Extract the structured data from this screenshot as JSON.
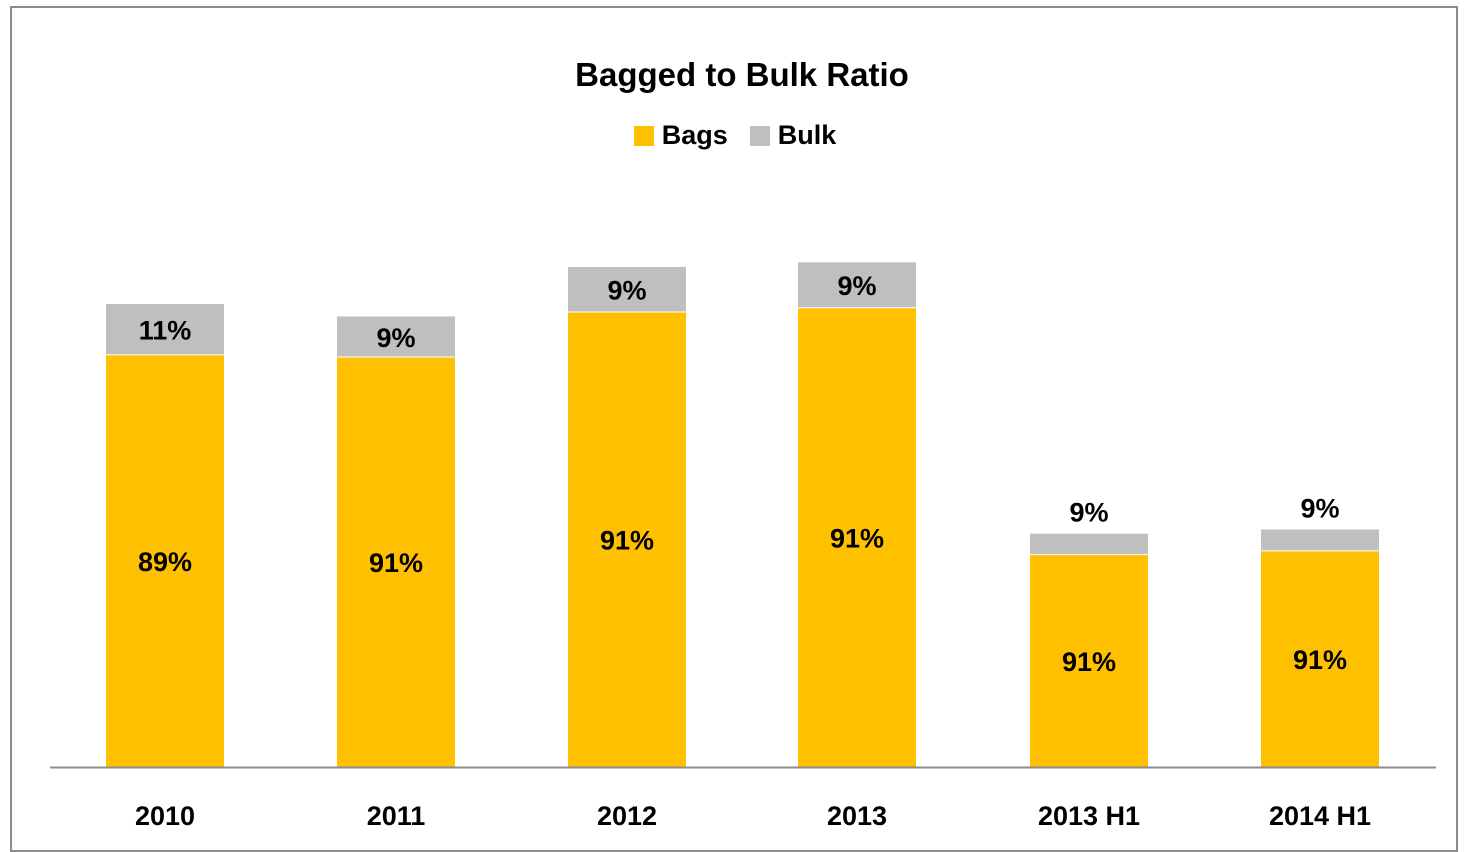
{
  "chart_data": {
    "type": "bar",
    "stacked": true,
    "title": "Bagged to Bulk Ratio",
    "xlabel": "",
    "ylabel": "",
    "categories": [
      "2010",
      "2011",
      "2012",
      "2013",
      "2013 H1",
      "2014 H1"
    ],
    "relative_height": [
      100,
      97.3,
      108,
      109,
      50.4,
      51.3
    ],
    "series": [
      {
        "name": "Bags",
        "color": "#FFC000",
        "values": [
          89,
          91,
          91,
          91,
          91,
          91
        ],
        "labels": [
          "89%",
          "91%",
          "91%",
          "91%",
          "91%",
          "91%"
        ]
      },
      {
        "name": "Bulk",
        "color": "#BFBFBF",
        "values": [
          11,
          9,
          9,
          9,
          9,
          9
        ],
        "labels": [
          "11%",
          "9%",
          "9%",
          "9%",
          "9%",
          "9%"
        ]
      }
    ],
    "legend": "top-center",
    "grid": false
  }
}
